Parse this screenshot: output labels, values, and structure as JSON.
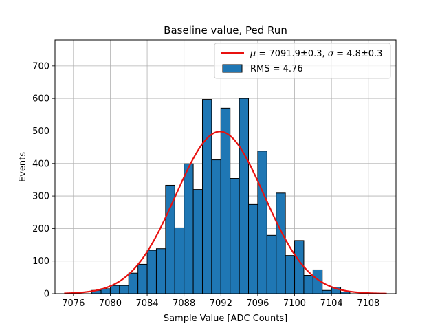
{
  "chart_data": {
    "type": "bar",
    "title": "Baseline value, Ped Run",
    "xlabel": "Sample Value [ADC Counts]",
    "ylabel": "Events",
    "xlim": [
      7074,
      7111
    ],
    "ylim": [
      0,
      780
    ],
    "xticks": [
      7076,
      7080,
      7084,
      7088,
      7092,
      7096,
      7100,
      7104,
      7108
    ],
    "yticks": [
      0,
      100,
      200,
      300,
      400,
      500,
      600,
      700
    ],
    "grid": true,
    "legend_position": "top-right",
    "bin_width": 1,
    "histogram": {
      "name": "RMS = 4.76",
      "color": "#1f77b4",
      "bins": [
        {
          "x": 7075,
          "value": 0
        },
        {
          "x": 7076,
          "value": 0
        },
        {
          "x": 7077,
          "value": 0
        },
        {
          "x": 7078,
          "value": 10
        },
        {
          "x": 7079,
          "value": 15
        },
        {
          "x": 7080,
          "value": 25
        },
        {
          "x": 7081,
          "value": 25
        },
        {
          "x": 7082,
          "value": 63
        },
        {
          "x": 7083,
          "value": 90
        },
        {
          "x": 7084,
          "value": 133
        },
        {
          "x": 7085,
          "value": 138
        },
        {
          "x": 7086,
          "value": 333
        },
        {
          "x": 7087,
          "value": 202
        },
        {
          "x": 7088,
          "value": 399
        },
        {
          "x": 7089,
          "value": 320
        },
        {
          "x": 7090,
          "value": 597
        },
        {
          "x": 7091,
          "value": 411
        },
        {
          "x": 7092,
          "value": 570
        },
        {
          "x": 7093,
          "value": 354
        },
        {
          "x": 7094,
          "value": 600
        },
        {
          "x": 7095,
          "value": 274
        },
        {
          "x": 7096,
          "value": 438
        },
        {
          "x": 7097,
          "value": 179
        },
        {
          "x": 7098,
          "value": 309
        },
        {
          "x": 7099,
          "value": 117
        },
        {
          "x": 7100,
          "value": 163
        },
        {
          "x": 7101,
          "value": 56
        },
        {
          "x": 7102,
          "value": 73
        },
        {
          "x": 7103,
          "value": 10
        },
        {
          "x": 7104,
          "value": 20
        },
        {
          "x": 7105,
          "value": 5
        },
        {
          "x": 7106,
          "value": 0
        },
        {
          "x": 7107,
          "value": 0
        },
        {
          "x": 7108,
          "value": 0
        }
      ]
    },
    "fit": {
      "name": "$\\mu = 7091.9 \\pm 0.3$, $\\sigma = 4.8 \\pm 0.3$",
      "legend_parts": [
        "μ",
        " = 7091.9±0.3, ",
        "σ",
        " = 4.8±0.3"
      ],
      "color": "#e8110f",
      "type": "gaussian",
      "mu": 7091.9,
      "sigma": 4.8,
      "amplitude": 498,
      "x_range": [
        7075,
        7110
      ]
    }
  }
}
